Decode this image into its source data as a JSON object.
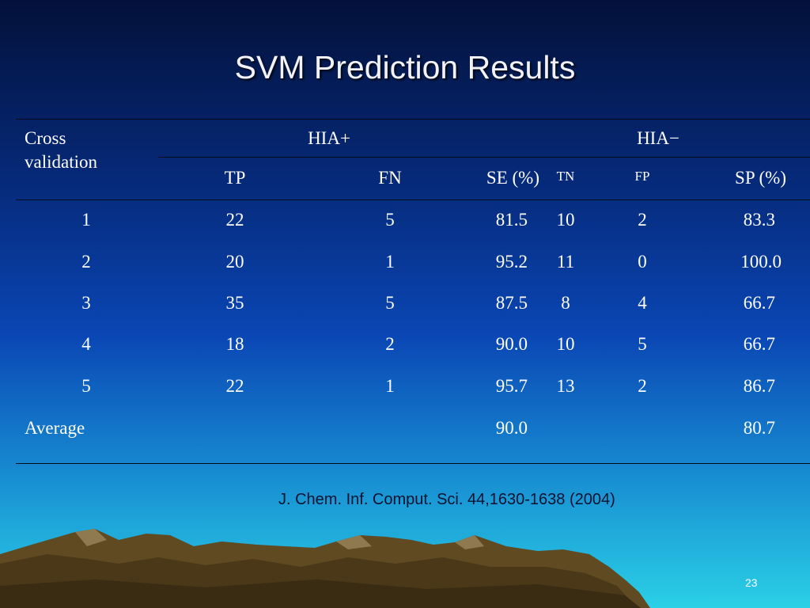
{
  "slide": {
    "title": "SVM Prediction Results",
    "citation": "J. Chem. Inf. Comput. Sci. 44,1630-1638 (2004)",
    "page_number": "23"
  },
  "table": {
    "row_header": [
      "Cross",
      "validation"
    ],
    "group_headers": [
      "HIA+",
      "HIA−"
    ],
    "columns": [
      "TP",
      "FN",
      "SE (%)",
      "TN",
      "FP",
      "SP (%)"
    ],
    "rows": [
      [
        "1",
        "22",
        "5",
        "81.5",
        "10",
        "2",
        "83.3"
      ],
      [
        "2",
        "20",
        "1",
        "95.2",
        "11",
        "0",
        "100.0"
      ],
      [
        "3",
        "35",
        "5",
        "87.5",
        "8",
        "4",
        "66.7"
      ],
      [
        "4",
        "18",
        "2",
        "90.0",
        "10",
        "5",
        "66.7"
      ],
      [
        "5",
        "22",
        "1",
        "95.7",
        "13",
        "2",
        "86.7"
      ],
      [
        "Average",
        "",
        "",
        "90.0",
        "",
        "",
        "80.7"
      ]
    ]
  },
  "colors": {
    "background_top": "#03113a",
    "background_bottom": "#2ad0e6",
    "mountain": "#5f4a22",
    "citation_text": "#0c1230"
  }
}
